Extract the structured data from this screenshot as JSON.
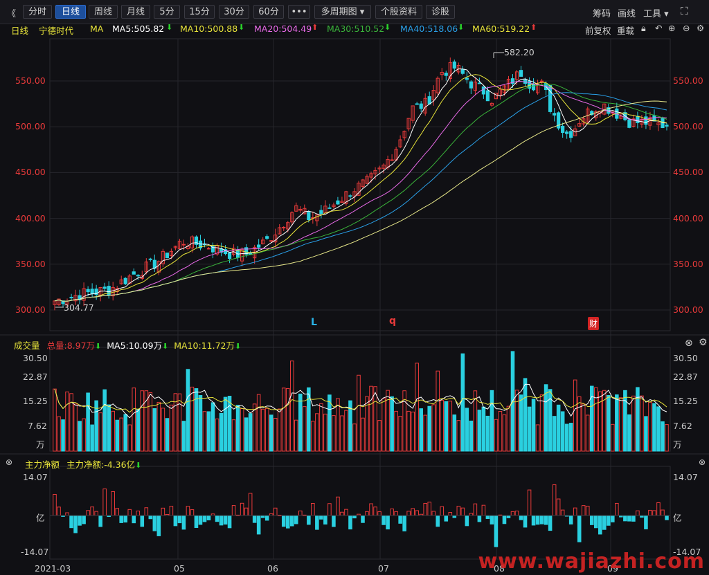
{
  "toolbar": {
    "back": "《",
    "tabs": [
      "分时",
      "日线",
      "周线",
      "月线",
      "5分",
      "15分",
      "30分",
      "60分",
      "•••",
      "多周期图 ▾",
      "个股资料",
      "诊股"
    ],
    "active_tab": "日线",
    "right_items": [
      "筹码",
      "画线",
      "工具 ▾"
    ]
  },
  "info": {
    "period": "日线",
    "stock": "宁德时代",
    "ma": "MA",
    "ma5": "MA5:505.82",
    "ma10": "MA10:500.88",
    "ma20": "MA20:504.49",
    "ma30": "MA30:510.52",
    "ma40": "MA40:518.06",
    "ma60": "MA60:519.22",
    "restore": "前复权",
    "overlay": "重载"
  },
  "price_panel": {
    "y_ticks": [
      "550.00",
      "500.00",
      "450.00",
      "400.00",
      "350.00",
      "300.00"
    ],
    "high_label": "582.20",
    "low_label": "304.77",
    "markers": [
      {
        "text": "L",
        "color": "#2ab4e8"
      },
      {
        "text": "q",
        "color": "#e83a3a"
      },
      {
        "text": "财",
        "color": "#ffffff",
        "bg": "#d42424"
      }
    ]
  },
  "volume_panel": {
    "title": "成交量",
    "total": "总量:8.97万",
    "ma5": "MA5:10.09万",
    "ma10": "MA10:11.72万",
    "y_ticks": [
      "30.50",
      "22.87",
      "15.25",
      "7.62",
      "万"
    ]
  },
  "flow_panel": {
    "title": "主力净额",
    "value": "主力净额:-4.36亿",
    "y_ticks": [
      "14.07",
      "亿",
      "-14.07"
    ]
  },
  "x_axis": [
    "2021-03",
    "05",
    "06",
    "07",
    "08",
    "09"
  ],
  "watermark": "www.wajiazhi.com",
  "colors": {
    "up": "#e83a3a",
    "down": "#2ad0e0",
    "ma5": "#ffffff",
    "ma10": "#e8e43a",
    "ma20": "#e86ae8",
    "ma30": "#3ab43a",
    "ma40": "#2aa0e8",
    "ma60": "#e8e88a"
  }
}
